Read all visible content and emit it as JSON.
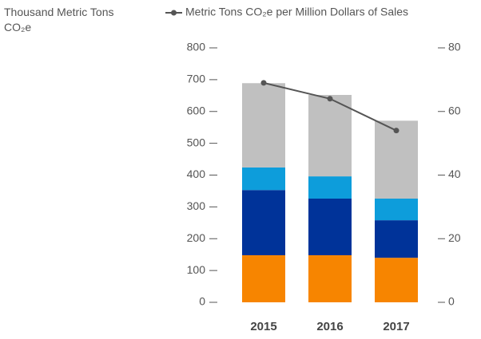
{
  "chart_data": {
    "type": "bar",
    "stacked": true,
    "y_label": "Thousand Metric Tons CO₂e",
    "categories": [
      "2015",
      "2016",
      "2017"
    ],
    "series": [
      {
        "color": "#f78500",
        "values": [
          148,
          148,
          140
        ]
      },
      {
        "color": "#003399",
        "values": [
          205,
          178,
          118
        ]
      },
      {
        "color": "#0d9ddb",
        "values": [
          71,
          70,
          68
        ]
      },
      {
        "color": "#c0c0c0",
        "values": [
          265,
          256,
          245
        ]
      },
      {
        "name": "Metric Tons CO₂e per Million Dollars of Sales",
        "type": "line",
        "axis": "y2",
        "color": "#555555",
        "values": [
          69,
          64,
          54
        ]
      }
    ],
    "ylim": [
      0,
      800
    ],
    "yticks": [
      0,
      100,
      200,
      300,
      400,
      500,
      600,
      700,
      800
    ],
    "y2lim": [
      0,
      80
    ],
    "y2ticks": [
      0,
      20,
      40,
      60,
      80
    ],
    "legend": "top"
  }
}
